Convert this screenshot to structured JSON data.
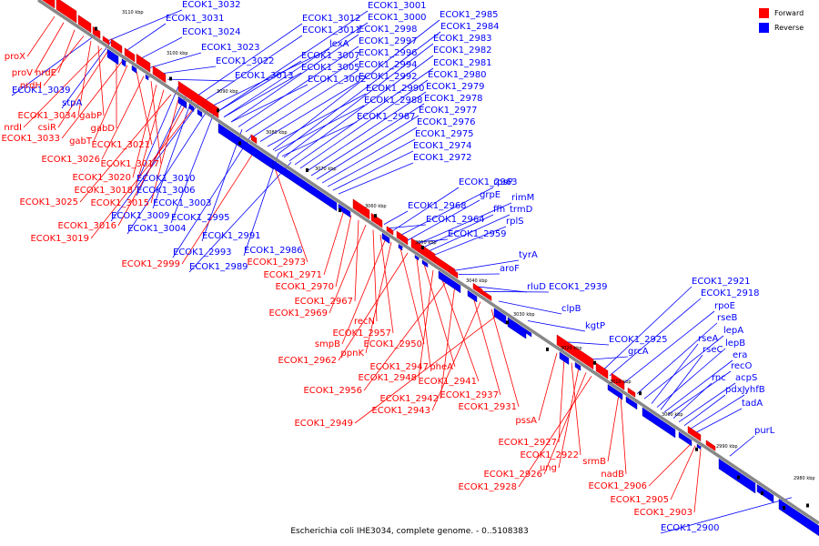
{
  "caption": "Escherichia coli IHE3034, complete genome. - 0..5108383",
  "legend": [
    {
      "label": "Forward",
      "color": "#ff0000"
    },
    {
      "label": "Reverse",
      "color": "#0000ff"
    }
  ],
  "colors": {
    "forward": "#ff0000",
    "reverse": "#0000ff",
    "backbone": "#808080",
    "other": "#000000"
  },
  "ticks": [
    "3110 kbp",
    "3100 kbp",
    "3090 kbp",
    "3080 kbp",
    "3070 kbp",
    "3060 kbp",
    "3050 kbp",
    "3040 kbp",
    "3030 kbp",
    "3020 kbp",
    "3010 kbp",
    "3000 kbp",
    "2990 kbp",
    "2980 kbp"
  ],
  "reverse_labels": [
    "ECOK1_3032",
    "ECOK1_3031",
    "ECOK1_3024",
    "ECOK1_3023",
    "ECOK1_3022",
    "ECOK1_3013",
    "ECOK1_3012",
    "ECOK1_3011",
    "lexA",
    "ECOK1_3007",
    "ECOK1_3005",
    "ECOK1_3002",
    "ECOK1_3001",
    "ECOK1_3000",
    "ECOK1_2998",
    "ECOK1_2997",
    "ECOK1_2996",
    "ECOK1_2994",
    "ECOK1_2992",
    "ECOK1_2990",
    "ECOK1_2988",
    "ECOK1_2987",
    "ECOK1_2985",
    "ECOK1_2984",
    "ECOK1_2983",
    "ECOK1_2982",
    "ECOK1_2981",
    "ECOK1_2980",
    "ECOK1_2979",
    "ECOK1_2978",
    "ECOK1_2977",
    "ECOK1_2976",
    "ECOK1_2975",
    "ECOK1_2974",
    "ECOK1_2972",
    "ECOK1_3039",
    "stpA",
    "ECOK1_3010",
    "ECOK1_3006",
    "ECOK1_3003",
    "ECOK1_3009",
    "ECOK1_3004",
    "ECOK1_2995",
    "ECOK1_2991",
    "ECOK1_2993",
    "ECOK1_2986",
    "ECOK1_2989",
    "ECOK1_2963",
    "rpsP",
    "grpE",
    "rimM",
    "ffh",
    "trmD",
    "rplS",
    "ECOK1_2968",
    "ECOK1_2964",
    "ECOK1_2959",
    "tyrA",
    "aroF",
    "rluD",
    "ECOK1_2939",
    "clpB",
    "kgtP",
    "ECOK1_2925",
    "grcA",
    "ECOK1_2921",
    "ECOK1_2918",
    "rpoE",
    "rseB",
    "lepA",
    "rseA",
    "lepB",
    "rseC",
    "era",
    "recO",
    "rnc",
    "acpS",
    "pdxJ",
    "yhfB",
    "tadA",
    "purL",
    "ECOK1_2900"
  ],
  "forward_labels": [
    "proX",
    "proV",
    "nrdE",
    "nrdH",
    "ECOK1_3034",
    "gabP",
    "nrdI",
    "csiR",
    "gabD",
    "ECOK1_3033",
    "gabT",
    "ECOK1_3021",
    "ECOK1_3026",
    "ECOK1_3017",
    "ECOK1_3020",
    "ECOK1_3018",
    "ECOK1_3025",
    "ECOK1_3015",
    "ECOK1_3016",
    "ECOK1_3019",
    "ECOK1_2999",
    "ECOK1_2973",
    "ECOK1_2971",
    "ECOK1_2970",
    "ECOK1_2967",
    "ECOK1_2969",
    "recN",
    "ECOK1_2957",
    "smpB",
    "ppnK",
    "ECOK1_2950",
    "ECOK1_2962",
    "ECOK1_2947",
    "pheA",
    "ECOK1_2948",
    "ECOK1_2941",
    "ECOK1_2956",
    "ECOK1_2942",
    "ECOK1_2937",
    "ECOK1_2943",
    "ECOK1_2931",
    "ECOK1_2949",
    "pssA",
    "ECOK1_2927",
    "ECOK1_2922",
    "srmB",
    "ung",
    "ECOK1_2926",
    "nadB",
    "ECOK1_2928",
    "ECOK1_2906",
    "ECOK1_2905",
    "ECOK1_2903"
  ]
}
